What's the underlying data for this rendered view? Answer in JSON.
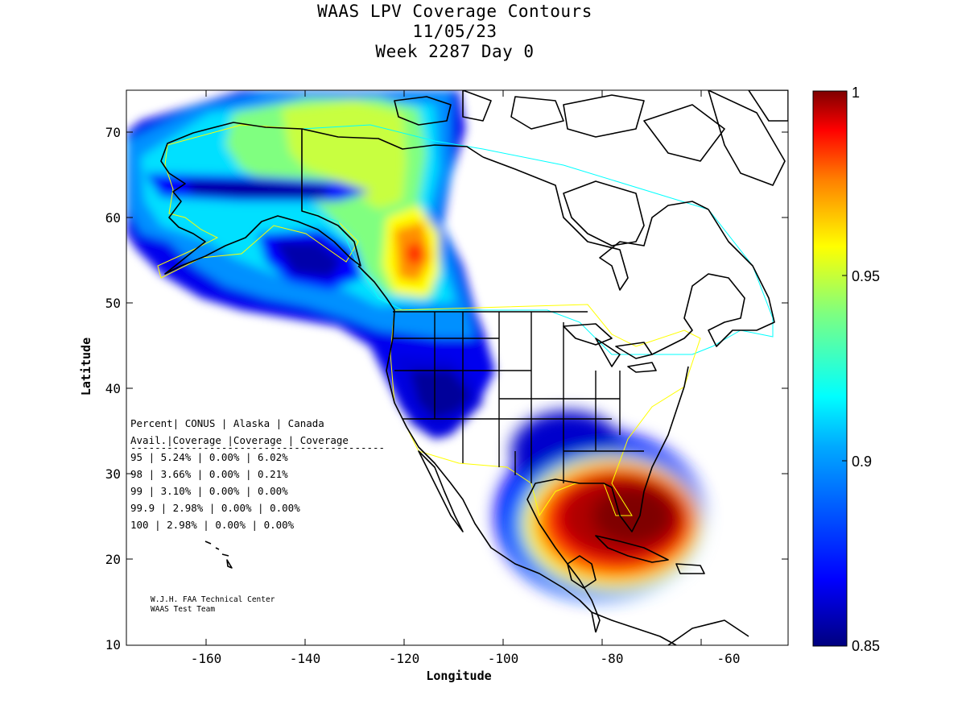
{
  "title": {
    "line1": "WAAS LPV Coverage Contours",
    "line2": "11/05/23",
    "line3": "Week 2287 Day 0"
  },
  "axes": {
    "xlabel": "Longitude",
    "ylabel": "Latitude",
    "x_ticks": [
      "-160",
      "-140",
      "-120",
      "-100",
      "-80",
      "-60"
    ],
    "y_ticks": [
      "10",
      "20",
      "30",
      "40",
      "50",
      "60",
      "70"
    ],
    "xlim": [
      -175,
      -50
    ],
    "ylim": [
      10,
      75
    ]
  },
  "colorbar": {
    "labels": [
      "1",
      "0.95",
      "0.9",
      "0.85"
    ],
    "range": [
      0.85,
      1
    ],
    "colormap": [
      "#00007f",
      "#0000ff",
      "#007fff",
      "#00ffff",
      "#7fff7f",
      "#ffff00",
      "#ff7f00",
      "#ff0000",
      "#7f0000"
    ]
  },
  "table": {
    "header1": "Percent| CONUS   | Alaska  | Canada",
    "header2": " Avail.|Coverage |Coverage | Coverage",
    "separator": "------------------------------------------",
    "rows": [
      "  95   | 5.24%  | 0.00% | 6.02%",
      "  98   | 3.66%  | 0.00% | 0.21%",
      "  99   | 3.10%  | 0.00% | 0.00%",
      "99.9   | 2.98%  | 0.00% | 0.00%",
      " 100   | 2.98%  | 0.00% | 0.00%"
    ]
  },
  "credit": {
    "line1": "W.J.H. FAA Technical Center",
    "line2": "WAAS Test Team"
  },
  "colors": {
    "frame": "#000000",
    "service_area_outline": "#ffff00",
    "canada_outline": "#00ffff",
    "coastline": "#000000"
  }
}
